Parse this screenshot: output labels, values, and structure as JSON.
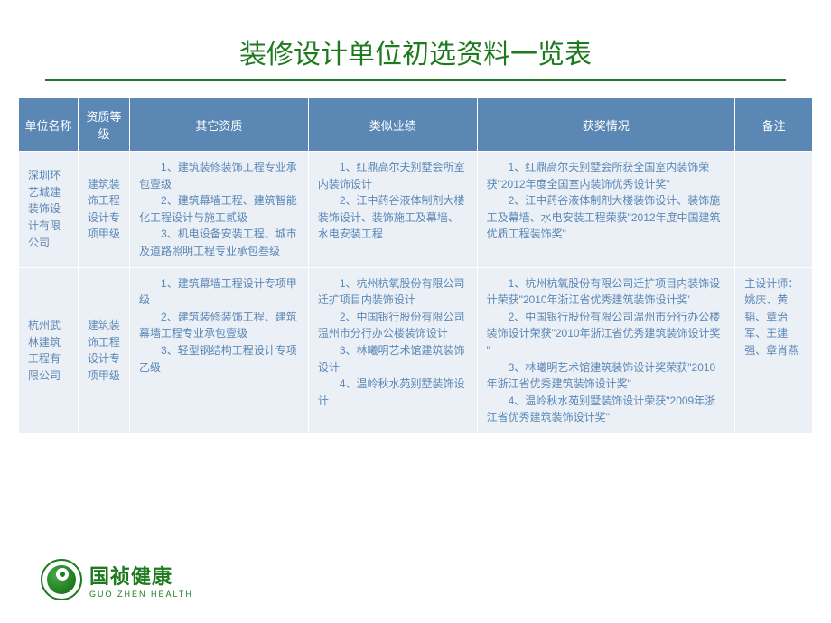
{
  "title": "装修设计单位初选资料一览表",
  "table": {
    "headers": [
      "单位名称",
      "资质等级",
      "其它资质",
      "类似业绩",
      "获奖情况",
      "备注"
    ],
    "rows": [
      {
        "name": "深圳环艺城建装饰设计有限公司",
        "grade": "建筑装饰工程设计专项甲级",
        "other": "　　1、建筑装修装饰工程专业承包壹级\n　　2、建筑幕墙工程、建筑智能化工程设计与施工贰级\n　　3、机电设备安装工程、城市及道路照明工程专业承包叁级",
        "similar": "　　1、红鼎高尔夫别墅会所室内装饰设计\n　　2、江中药谷液体制剂大楼装饰设计、装饰施工及幕墙、水电安装工程",
        "award": "　　1、红鼎高尔夫别墅会所获全国室内装饰荣获\"2012年度全国室内装饰优秀设计奖\"\n　　2、江中药谷液体制剂大楼装饰设计、装饰施工及幕墙、水电安装工程荣获\"2012年度中国建筑优质工程装饰奖\"",
        "remark": ""
      },
      {
        "name": "杭州武林建筑工程有限公司",
        "grade": "建筑装饰工程设计专项甲级",
        "other": "　　1、建筑幕墙工程设计专项甲级\n　　2、建筑装修装饰工程、建筑幕墙工程专业承包壹级\n　　3、轻型钢结构工程设计专项乙级",
        "similar": "　　1、杭州杭氧股份有限公司迁扩项目内装饰设计\n　　2、中国银行股份有限公司温州市分行办公楼装饰设计\n　　3、林曦明艺术馆建筑装饰设计\n　　4、温岭秋水苑别墅装饰设计",
        "award": "　　1、杭州杭氧股份有限公司迁扩项目内装饰设计荣获\"2010年浙江省优秀建筑装饰设计奖'\n　　2、中国银行股份有限公司温州市分行办公楼装饰设计荣获\"2010年浙江省优秀建筑装饰设计奖 \"\n　　3、林曦明艺术馆建筑装饰设计奖荣获\"2010年浙江省优秀建筑装饰设计奖\"\n　　4、温岭秋水苑别墅装饰设计荣获\"2009年浙江省优秀建筑装饰设计奖\"",
        "remark": "主设计师：姚庆、黄韬、章治军、王建强、章肖燕"
      }
    ]
  },
  "logo": {
    "cn": "国祯健康",
    "en": "GUO ZHEN HEALTH"
  },
  "colors": {
    "brand_green": "#1e7a1e",
    "header_bg": "#5b87b5",
    "cell_bg": "#ebf0f6",
    "white": "#ffffff"
  }
}
